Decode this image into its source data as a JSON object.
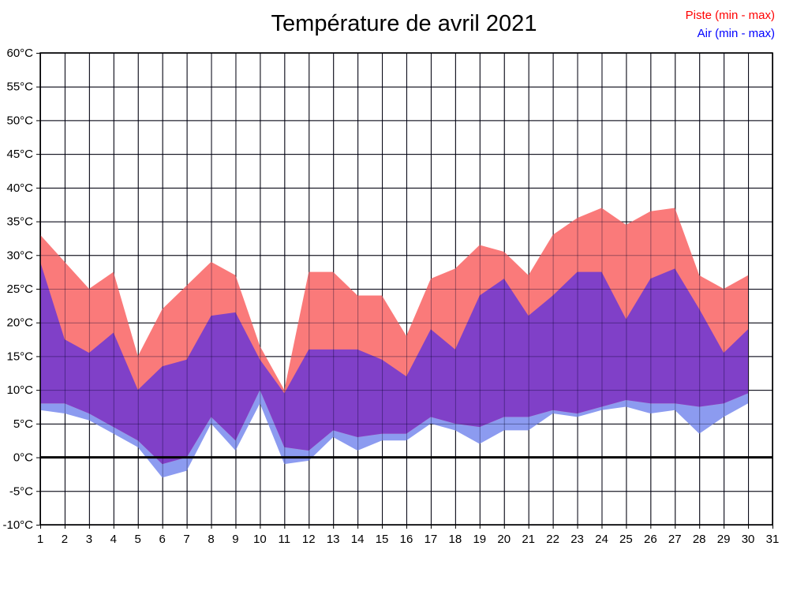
{
  "header": {
    "title": "Température de avril 2021"
  },
  "legend": [
    {
      "label": "Piste (min - max)",
      "color": "#ff0000"
    },
    {
      "label": "Air (min - max)",
      "color": "#0000ff"
    }
  ],
  "chart_data": {
    "type": "area",
    "subtype": "min-max range bands",
    "title": "Température de avril 2021",
    "unit": "°C",
    "ylim": [
      -10,
      60
    ],
    "y_tick_step": 5,
    "x_ticks": [
      1,
      2,
      3,
      4,
      5,
      6,
      7,
      8,
      9,
      10,
      11,
      12,
      13,
      14,
      15,
      16,
      17,
      18,
      19,
      20,
      21,
      22,
      23,
      24,
      25,
      26,
      27,
      28,
      29,
      30,
      31
    ],
    "days": [
      1,
      2,
      3,
      4,
      5,
      6,
      7,
      8,
      9,
      10,
      11,
      12,
      13,
      14,
      15,
      16,
      17,
      18,
      19,
      20,
      21,
      22,
      23,
      24,
      25,
      26,
      27,
      28,
      29,
      30
    ],
    "grid": true,
    "zero_line_bold": true,
    "legend_position": "top-right",
    "series": [
      {
        "name": "Piste (min - max)",
        "fill_color": "#fa7a7a",
        "min": [
          8,
          8,
          6.5,
          4.5,
          2.5,
          -1,
          0,
          6,
          2.5,
          10,
          1.5,
          1,
          4,
          3,
          3.5,
          3.5,
          6,
          5,
          4.5,
          6,
          6,
          7,
          6.5,
          7.5,
          8.5,
          8,
          8,
          7.5,
          8,
          9.5
        ],
        "max": [
          33,
          29,
          25,
          27.5,
          15,
          22,
          25.5,
          29,
          27,
          16.5,
          10,
          27.5,
          27.5,
          24,
          24,
          18,
          26.5,
          28,
          31.5,
          30.5,
          27,
          33,
          35.5,
          37,
          34.5,
          36.5,
          37,
          27,
          25,
          27
        ]
      },
      {
        "name": "Air (min - max)",
        "fill_color": "#8c9bf0",
        "overlap_color": "#8040c8",
        "min": [
          7,
          6.5,
          5.5,
          3.5,
          1.5,
          -3,
          -2,
          5,
          1,
          8,
          -1,
          -0.5,
          3,
          1,
          2.5,
          2.5,
          5,
          4,
          2,
          4,
          4,
          6.5,
          6,
          7,
          7.5,
          6.5,
          7,
          3.5,
          6,
          8
        ],
        "max": [
          29,
          17.5,
          15.5,
          18.5,
          10,
          13.5,
          14.5,
          21,
          21.5,
          14.5,
          9.5,
          16,
          16,
          16,
          14.5,
          12,
          19,
          16,
          24,
          26.5,
          21,
          24,
          27.5,
          27.5,
          20.5,
          26.5,
          28,
          22,
          15.5,
          19
        ]
      }
    ]
  },
  "colors": {
    "grid_line": "#000000",
    "zero_line": "#000000",
    "plot_border": "#000000",
    "background": "#ffffff"
  }
}
